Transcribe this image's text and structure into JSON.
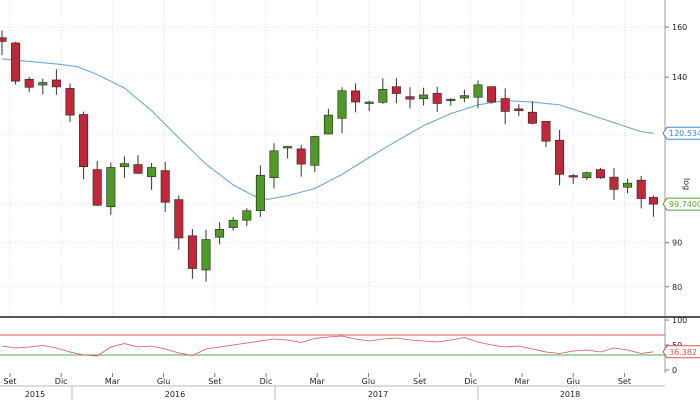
{
  "chart_data": {
    "type": "candlestick",
    "scale": "log",
    "ylim": [
      74,
      172
    ],
    "yticks": [
      80,
      90,
      100,
      120,
      140,
      160
    ],
    "ytick_labels": [
      "80",
      "90",
      "100",
      "120",
      "140",
      "160"
    ],
    "axis_label": "log",
    "x_months": [
      "Set",
      "Dic",
      "Mar",
      "Giu",
      "Set",
      "Dic",
      "Mar",
      "Giu",
      "Set",
      "Dic",
      "Mar",
      "Giu",
      "Set"
    ],
    "x_years": [
      "2015",
      "2016",
      "2017",
      "2018"
    ],
    "price_path": [
      [
        0,
        154
      ],
      [
        0.5,
        142
      ],
      [
        1.5,
        135
      ],
      [
        2.7,
        138
      ],
      [
        3.8,
        138
      ],
      [
        4.8,
        130
      ],
      [
        5.6,
        116
      ],
      [
        6.5,
        103
      ],
      [
        7.2,
        98
      ],
      [
        8,
        110
      ],
      [
        8.8,
        114
      ],
      [
        9.5,
        104
      ],
      [
        10.2,
        110
      ],
      [
        11,
        110
      ],
      [
        11.8,
        101
      ],
      [
        12.6,
        98
      ],
      [
        13.3,
        86
      ],
      [
        14,
        84
      ],
      [
        14.7,
        90
      ],
      [
        15.5,
        92
      ],
      [
        16.3,
        94
      ],
      [
        17.2,
        96
      ],
      [
        18,
        98
      ],
      [
        18.8,
        106
      ],
      [
        19.6,
        113
      ],
      [
        20.4,
        117
      ],
      [
        21.3,
        116
      ],
      [
        22,
        111
      ],
      [
        22.8,
        118
      ],
      [
        23.6,
        124
      ],
      [
        24.4,
        129
      ],
      [
        25.1,
        136
      ],
      [
        25.8,
        132
      ],
      [
        26.6,
        128
      ],
      [
        27.4,
        134
      ],
      [
        28.2,
        136
      ],
      [
        29,
        134
      ],
      [
        29.8,
        131
      ],
      [
        30.6,
        135
      ],
      [
        31.4,
        132
      ],
      [
        32.2,
        130
      ],
      [
        33,
        132
      ],
      [
        33.8,
        131
      ],
      [
        34.6,
        140
      ],
      [
        35.3,
        135
      ],
      [
        36,
        131
      ],
      [
        36.8,
        128
      ],
      [
        37.6,
        127
      ],
      [
        38.4,
        129
      ],
      [
        39.2,
        122
      ],
      [
        40,
        118
      ],
      [
        40.8,
        108
      ],
      [
        41.6,
        108
      ],
      [
        42.4,
        107
      ],
      [
        43.2,
        109
      ],
      [
        44,
        107
      ],
      [
        44.8,
        103
      ],
      [
        45.6,
        106
      ],
      [
        46.4,
        105
      ],
      [
        47.2,
        100
      ],
      [
        47.9,
        99.74
      ]
    ],
    "moving_average": {
      "color": "#6aa9dc",
      "last_value": 120.534,
      "points": [
        [
          0,
          147
        ],
        [
          2,
          146
        ],
        [
          4,
          145
        ],
        [
          5.5,
          144
        ],
        [
          7,
          141
        ],
        [
          9,
          136
        ],
        [
          11,
          128
        ],
        [
          13,
          119
        ],
        [
          15,
          111
        ],
        [
          17,
          105
        ],
        [
          18.5,
          102
        ],
        [
          19.5,
          101
        ],
        [
          21,
          102
        ],
        [
          23,
          104
        ],
        [
          25,
          108
        ],
        [
          27,
          113
        ],
        [
          29,
          118
        ],
        [
          31,
          123
        ],
        [
          33,
          127
        ],
        [
          35,
          130
        ],
        [
          37,
          131.5
        ],
        [
          39,
          131
        ],
        [
          41,
          130
        ],
        [
          43,
          127
        ],
        [
          45,
          124
        ],
        [
          47,
          121
        ],
        [
          47.9,
          120.534
        ]
      ]
    },
    "rsi": {
      "ylim": [
        0,
        100
      ],
      "yticks": [
        100,
        50,
        0
      ],
      "ytick_labels": [
        "100",
        "50",
        "0"
      ],
      "upper_band": 70,
      "lower_band": 30,
      "upper_color": "#e05050",
      "lower_color": "#4caf50",
      "line_color": "#e05050",
      "last_value": 36.382,
      "points": [
        [
          0,
          48
        ],
        [
          1,
          44
        ],
        [
          2,
          46
        ],
        [
          3,
          49
        ],
        [
          4,
          44
        ],
        [
          5,
          36
        ],
        [
          6,
          30
        ],
        [
          7,
          28
        ],
        [
          8,
          46
        ],
        [
          9,
          53
        ],
        [
          10,
          46
        ],
        [
          11,
          48
        ],
        [
          12,
          42
        ],
        [
          13,
          34
        ],
        [
          14,
          29
        ],
        [
          15,
          42
        ],
        [
          16,
          46
        ],
        [
          17,
          50
        ],
        [
          18,
          54
        ],
        [
          19,
          58
        ],
        [
          20,
          62
        ],
        [
          21,
          60
        ],
        [
          22,
          55
        ],
        [
          23,
          63
        ],
        [
          24,
          66
        ],
        [
          25,
          68
        ],
        [
          26,
          62
        ],
        [
          27,
          58
        ],
        [
          28,
          62
        ],
        [
          29,
          64
        ],
        [
          30,
          60
        ],
        [
          31,
          58
        ],
        [
          32,
          56
        ],
        [
          33,
          60
        ],
        [
          34,
          65
        ],
        [
          35,
          56
        ],
        [
          36,
          50
        ],
        [
          37,
          46
        ],
        [
          38,
          48
        ],
        [
          39,
          42
        ],
        [
          40,
          36
        ],
        [
          41,
          33
        ],
        [
          42,
          38
        ],
        [
          43,
          40
        ],
        [
          44,
          36
        ],
        [
          45,
          44
        ],
        [
          46,
          40
        ],
        [
          47,
          33
        ],
        [
          47.9,
          36.382
        ]
      ]
    },
    "badges": [
      {
        "label": "120.5340",
        "value": 120.534,
        "color": "#3a8ad6",
        "panel": "price"
      },
      {
        "label": "99.7400",
        "value": 99.74,
        "color": "#5aa02c",
        "panel": "price"
      },
      {
        "label": "36.382",
        "value": 36.382,
        "color": "#e05050",
        "panel": "rsi"
      }
    ],
    "colors": {
      "up": "#4e9a24",
      "down": "#c0283a",
      "grid": "#cccccc",
      "separator": "#555555"
    }
  }
}
